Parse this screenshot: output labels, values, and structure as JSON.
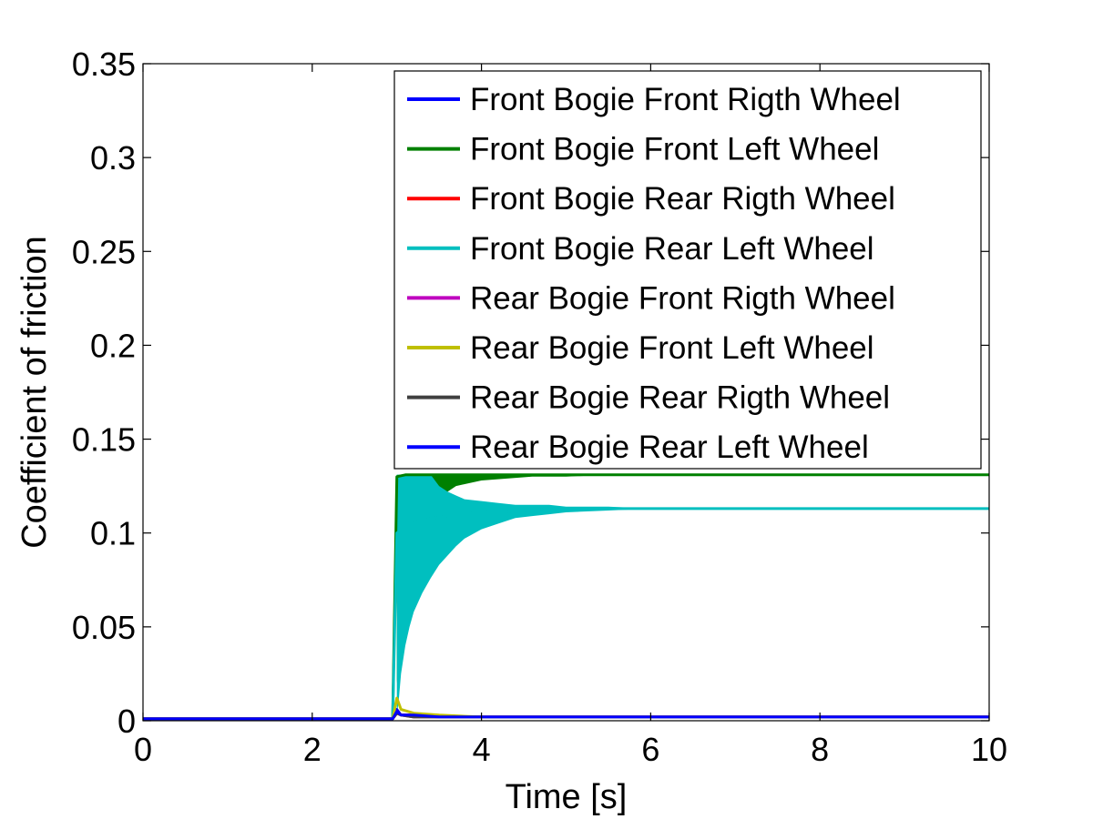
{
  "chart_data": {
    "type": "line",
    "title": "",
    "xlabel": "Time [s]",
    "ylabel": "Coefficient of friction",
    "xlim": [
      0,
      10
    ],
    "ylim": [
      0,
      0.35
    ],
    "xticks": [
      0,
      2,
      4,
      6,
      8,
      10
    ],
    "xtick_labels": [
      "0",
      "2",
      "4",
      "6",
      "8",
      "10"
    ],
    "yticks": [
      0,
      0.05,
      0.1,
      0.15,
      0.2,
      0.25,
      0.3,
      0.35
    ],
    "ytick_labels": [
      "0",
      "0.05",
      "0.1",
      "0.15",
      "0.2",
      "0.25",
      "0.3",
      "0.35"
    ],
    "grid": false,
    "legend_position": "top-right",
    "series": [
      {
        "name": "Front Bogie Front Rigth Wheel",
        "color": "#0000ff",
        "x": [
          0,
          2.95,
          3.0,
          3.05,
          3.2,
          3.5,
          4.0,
          5.0,
          6.0,
          8.0,
          10.0
        ],
        "y": [
          0.001,
          0.001,
          0.006,
          0.003,
          0.003,
          0.002,
          0.002,
          0.002,
          0.002,
          0.002,
          0.002
        ]
      },
      {
        "name": "Front Bogie Front Left Wheel",
        "color": "#008000",
        "x": [
          0,
          2.95,
          3.0,
          3.1,
          3.3,
          3.6,
          4.0,
          4.5,
          5.0,
          6.0,
          8.0,
          10.0
        ],
        "y": [
          0.001,
          0.001,
          0.13,
          0.131,
          0.131,
          0.131,
          0.131,
          0.131,
          0.131,
          0.131,
          0.131,
          0.131
        ]
      },
      {
        "name": "Front Bogie Rear Rigth Wheel",
        "color": "#ff0000",
        "x": [
          0,
          2.95,
          3.0,
          3.05,
          3.2,
          3.5,
          4.0,
          5.0,
          6.0,
          8.0,
          10.0
        ],
        "y": [
          0.001,
          0.001,
          0.005,
          0.003,
          0.003,
          0.002,
          0.002,
          0.002,
          0.002,
          0.002,
          0.002
        ]
      },
      {
        "name": "Front Bogie Rear Left Wheel",
        "color": "#00bfbf",
        "x": [
          0,
          2.95,
          3.0,
          3.1,
          3.3,
          3.6,
          4.0,
          4.5,
          5.0,
          6.0,
          8.0,
          10.0
        ],
        "y": [
          0.001,
          0.001,
          0.1,
          0.103,
          0.107,
          0.109,
          0.111,
          0.112,
          0.113,
          0.113,
          0.113,
          0.113
        ]
      },
      {
        "name": "Rear Bogie Front Rigth Wheel",
        "color": "#bf00bf",
        "x": [
          0,
          2.95,
          3.0,
          3.05,
          3.2,
          3.5,
          4.0,
          5.0,
          6.0,
          8.0,
          10.0
        ],
        "y": [
          0.001,
          0.001,
          0.004,
          0.003,
          0.002,
          0.002,
          0.002,
          0.002,
          0.002,
          0.002,
          0.002
        ]
      },
      {
        "name": "Rear Bogie Front Left Wheel",
        "color": "#bfbf00",
        "x": [
          0,
          2.95,
          3.0,
          3.05,
          3.2,
          3.5,
          4.0,
          5.0,
          6.0,
          8.0,
          10.0
        ],
        "y": [
          0.001,
          0.001,
          0.012,
          0.006,
          0.004,
          0.003,
          0.002,
          0.002,
          0.002,
          0.002,
          0.002
        ]
      },
      {
        "name": "Rear Bogie Rear Rigth Wheel",
        "color": "#404040",
        "x": [
          0,
          2.95,
          3.0,
          3.05,
          3.2,
          3.5,
          4.0,
          5.0,
          6.0,
          8.0,
          10.0
        ],
        "y": [
          0.001,
          0.001,
          0.004,
          0.003,
          0.002,
          0.002,
          0.002,
          0.002,
          0.002,
          0.002,
          0.002
        ]
      },
      {
        "name": "Rear Bogie Rear Left Wheel",
        "color": "#0000ff",
        "x": [
          0,
          2.95,
          3.0,
          3.05,
          3.2,
          3.5,
          4.0,
          5.0,
          6.0,
          8.0,
          10.0
        ],
        "y": [
          0.001,
          0.001,
          0.005,
          0.003,
          0.003,
          0.002,
          0.002,
          0.002,
          0.002,
          0.002,
          0.002
        ]
      }
    ],
    "oscillation_bands": [
      {
        "series": "Front Bogie Front Left Wheel",
        "x": [
          3.0,
          3.05,
          3.1,
          3.2,
          3.3,
          3.5,
          3.7,
          4.0,
          4.3,
          4.6,
          5.0,
          5.5
        ],
        "y_low": [
          0.02,
          0.05,
          0.075,
          0.095,
          0.108,
          0.119,
          0.125,
          0.128,
          0.129,
          0.13,
          0.13,
          0.131
        ],
        "y_high": [
          0.131,
          0.131,
          0.131,
          0.131,
          0.131,
          0.131,
          0.131,
          0.131,
          0.131,
          0.131,
          0.131,
          0.131
        ]
      },
      {
        "series": "Front Bogie Rear Left Wheel",
        "x": [
          3.0,
          3.02,
          3.05,
          3.1,
          3.15,
          3.2,
          3.3,
          3.4,
          3.5,
          3.6,
          3.7,
          3.8,
          4.0,
          4.2,
          4.4,
          4.6,
          4.8,
          5.0,
          5.5,
          6.0
        ],
        "y_low": [
          0.003,
          0.01,
          0.025,
          0.04,
          0.05,
          0.058,
          0.068,
          0.076,
          0.083,
          0.088,
          0.093,
          0.097,
          0.102,
          0.105,
          0.108,
          0.109,
          0.11,
          0.111,
          0.112,
          0.113
        ],
        "y_high": [
          0.131,
          0.131,
          0.131,
          0.131,
          0.131,
          0.131,
          0.131,
          0.131,
          0.125,
          0.122,
          0.12,
          0.118,
          0.117,
          0.116,
          0.115,
          0.115,
          0.115,
          0.114,
          0.114,
          0.113
        ]
      }
    ]
  }
}
